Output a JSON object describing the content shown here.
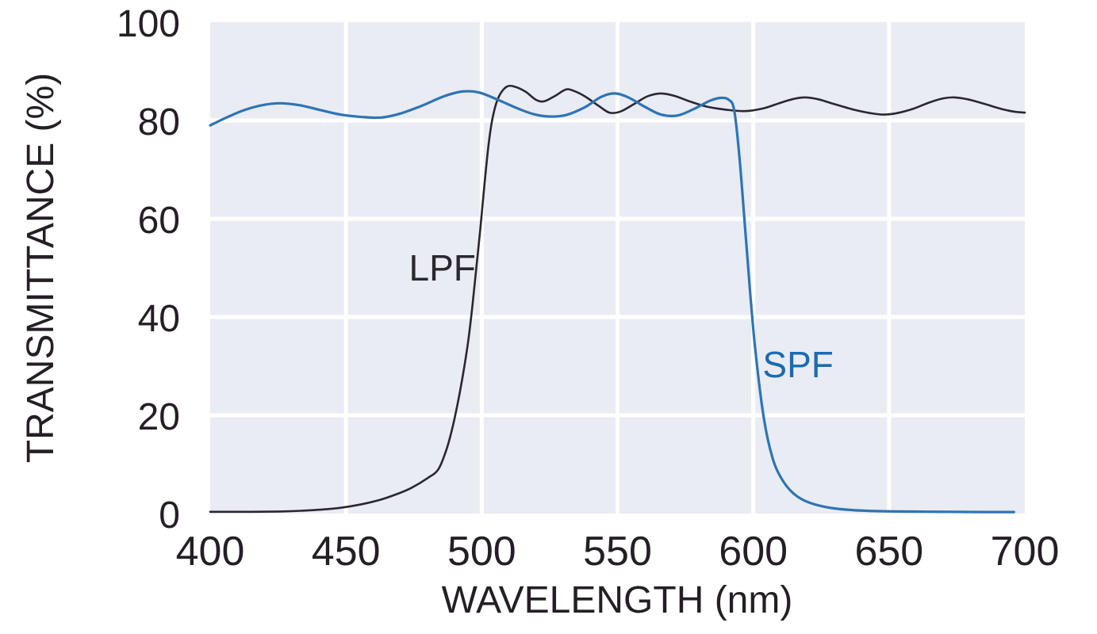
{
  "colors": {
    "page-bg": "#ffffff",
    "plot-bg": "#e9ecf3",
    "grid": "#ffffff",
    "text": "#241f24",
    "lpf": "#2a2730",
    "spf": "#2e74b5",
    "spf-label": "#1a6bb3"
  },
  "chart_data": {
    "type": "line",
    "title": "",
    "xlabel": "WAVELENGTH (nm)",
    "ylabel": "TRANSMITTANCE (%)",
    "xlim": [
      400,
      700
    ],
    "ylim": [
      0,
      100
    ],
    "x_ticks": [
      400,
      450,
      500,
      550,
      600,
      650,
      700
    ],
    "y_ticks": [
      0,
      20,
      40,
      60,
      80,
      100
    ],
    "grid": true,
    "grid_color": "white",
    "plot_background": "light blue-gray",
    "legend_position": "inline annotations on curves",
    "series": [
      {
        "name": "LPF",
        "description": "long-pass filter: blocks below ~500 nm, transmits ~82-87% above",
        "color": "#2a2730",
        "label_pos": {
          "x": 485.5,
          "y": 50
        },
        "points": [
          [
            400,
            0.35
          ],
          [
            415,
            0.35
          ],
          [
            428,
            0.45
          ],
          [
            438,
            0.7
          ],
          [
            447,
            1.1
          ],
          [
            455,
            1.8
          ],
          [
            462,
            2.7
          ],
          [
            468,
            3.8
          ],
          [
            474,
            5.2
          ],
          [
            480,
            7.2
          ],
          [
            484,
            9
          ],
          [
            487,
            13
          ],
          [
            489,
            17
          ],
          [
            491,
            22
          ],
          [
            493,
            28
          ],
          [
            495,
            35
          ],
          [
            496.5,
            42
          ],
          [
            498,
            50
          ],
          [
            499.5,
            58
          ],
          [
            501,
            67
          ],
          [
            502.5,
            75
          ],
          [
            504,
            80.5
          ],
          [
            506,
            84.5
          ],
          [
            509,
            86.8
          ],
          [
            512,
            86.9
          ],
          [
            516,
            85.9
          ],
          [
            520,
            84.2
          ],
          [
            523,
            83.9
          ],
          [
            527,
            85
          ],
          [
            531,
            86.3
          ],
          [
            534,
            86
          ],
          [
            538,
            84.9
          ],
          [
            543,
            83
          ],
          [
            547,
            81.6
          ],
          [
            551,
            81.8
          ],
          [
            556,
            83.3
          ],
          [
            561,
            84.9
          ],
          [
            566,
            85.5
          ],
          [
            571,
            85
          ],
          [
            577,
            83.8
          ],
          [
            583,
            82.8
          ],
          [
            590,
            82.2
          ],
          [
            597,
            81.9
          ],
          [
            604,
            82.5
          ],
          [
            610,
            83.6
          ],
          [
            615,
            84.4
          ],
          [
            619,
            84.7
          ],
          [
            624,
            84.3
          ],
          [
            630,
            83.3
          ],
          [
            637,
            82.2
          ],
          [
            643,
            81.5
          ],
          [
            648,
            81.2
          ],
          [
            653,
            81.5
          ],
          [
            659,
            82.4
          ],
          [
            665,
            83.7
          ],
          [
            670,
            84.5
          ],
          [
            674,
            84.7
          ],
          [
            679,
            84.3
          ],
          [
            685,
            83.4
          ],
          [
            691,
            82.4
          ],
          [
            696,
            81.8
          ],
          [
            700,
            81.6
          ]
        ]
      },
      {
        "name": "SPF",
        "description": "short-pass filter: transmits ~80-86% below ~590 nm, blocks above ~605 nm",
        "color": "#2e74b5",
        "label_pos": {
          "x": 616.5,
          "y": 30.3
        },
        "points": [
          [
            400,
            79
          ],
          [
            406,
            80.6
          ],
          [
            413,
            82.2
          ],
          [
            420,
            83.2
          ],
          [
            426,
            83.5
          ],
          [
            433,
            83.1
          ],
          [
            440,
            82.2
          ],
          [
            448,
            81.2
          ],
          [
            456,
            80.7
          ],
          [
            463,
            80.6
          ],
          [
            470,
            81.4
          ],
          [
            478,
            83
          ],
          [
            486,
            84.9
          ],
          [
            493,
            85.9
          ],
          [
            499,
            85.7
          ],
          [
            506,
            84.2
          ],
          [
            513,
            82.5
          ],
          [
            519,
            81.3
          ],
          [
            525,
            80.8
          ],
          [
            531,
            81.1
          ],
          [
            538,
            82.7
          ],
          [
            544,
            84.8
          ],
          [
            549,
            85.5
          ],
          [
            554,
            84.7
          ],
          [
            560,
            82.8
          ],
          [
            566,
            81.2
          ],
          [
            572,
            81
          ],
          [
            578,
            82.3
          ],
          [
            584,
            84
          ],
          [
            588,
            84.6
          ],
          [
            591,
            84.2
          ],
          [
            593,
            82
          ],
          [
            595,
            72
          ],
          [
            597,
            58
          ],
          [
            599,
            44
          ],
          [
            601,
            32
          ],
          [
            604,
            19
          ],
          [
            607,
            11.5
          ],
          [
            610,
            7.5
          ],
          [
            614,
            4.5
          ],
          [
            619,
            2.6
          ],
          [
            626,
            1.4
          ],
          [
            634,
            0.8
          ],
          [
            645,
            0.5
          ],
          [
            658,
            0.4
          ],
          [
            672,
            0.35
          ],
          [
            685,
            0.3
          ],
          [
            696,
            0.3
          ]
        ]
      }
    ]
  }
}
